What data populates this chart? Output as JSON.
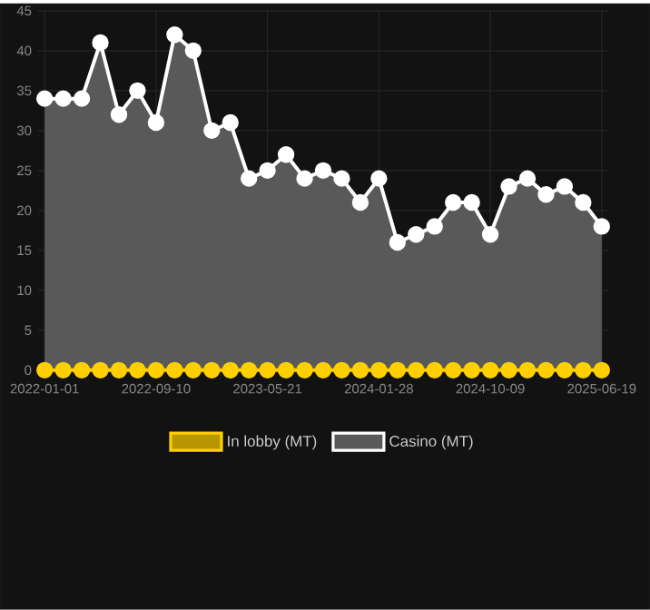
{
  "chart_data": {
    "type": "area",
    "categories": [
      "2022-01-01",
      null,
      null,
      null,
      null,
      null,
      "2022-09-10",
      null,
      null,
      null,
      null,
      null,
      "2023-05-21",
      null,
      null,
      null,
      null,
      null,
      "2024-01-28",
      null,
      null,
      null,
      null,
      null,
      "2024-10-09",
      null,
      null,
      null,
      null,
      null,
      "2025-06-19"
    ],
    "series": [
      {
        "name": "In lobby (MT)",
        "type": "line",
        "color": "#ffd000",
        "values": [
          0,
          0,
          0,
          0,
          0,
          0,
          0,
          0,
          0,
          0,
          0,
          0,
          0,
          0,
          0,
          0,
          0,
          0,
          0,
          0,
          0,
          0,
          0,
          0,
          0,
          0,
          0,
          0,
          0,
          0,
          0
        ]
      },
      {
        "name": "Casino (MT)",
        "color": "#ffffff",
        "values": [
          34,
          34,
          34,
          41,
          32,
          35,
          31,
          42,
          40,
          30,
          31,
          24,
          25,
          27,
          24,
          25,
          24,
          21,
          24,
          16,
          17,
          18,
          21,
          21,
          17,
          23,
          24,
          22,
          23,
          21,
          18
        ]
      }
    ],
    "ylim": [
      0,
      45
    ],
    "yticks": [
      0,
      5,
      10,
      15,
      20,
      25,
      30,
      35,
      40,
      45
    ],
    "grid": true,
    "legend": "bottom",
    "marker": "circle",
    "line_style": "solid"
  }
}
